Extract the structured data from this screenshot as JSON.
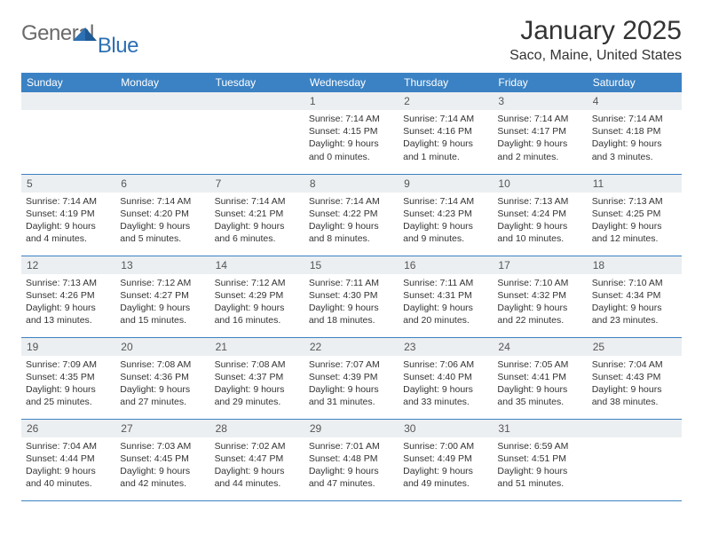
{
  "logo": {
    "general": "General",
    "blue": "Blue"
  },
  "title": "January 2025",
  "location": "Saco, Maine, United States",
  "colors": {
    "header_bg": "#3b82c4",
    "header_text": "#ffffff",
    "daynum_bg": "#eceff1",
    "border": "#3b82c4",
    "logo_gray": "#6a6a6a",
    "logo_blue": "#2d70b3"
  },
  "weekdays": [
    "Sunday",
    "Monday",
    "Tuesday",
    "Wednesday",
    "Thursday",
    "Friday",
    "Saturday"
  ],
  "weeks": [
    [
      null,
      null,
      null,
      {
        "n": "1",
        "sunrise": "7:14 AM",
        "sunset": "4:15 PM",
        "daylight": "9 hours and 0 minutes."
      },
      {
        "n": "2",
        "sunrise": "7:14 AM",
        "sunset": "4:16 PM",
        "daylight": "9 hours and 1 minute."
      },
      {
        "n": "3",
        "sunrise": "7:14 AM",
        "sunset": "4:17 PM",
        "daylight": "9 hours and 2 minutes."
      },
      {
        "n": "4",
        "sunrise": "7:14 AM",
        "sunset": "4:18 PM",
        "daylight": "9 hours and 3 minutes."
      }
    ],
    [
      {
        "n": "5",
        "sunrise": "7:14 AM",
        "sunset": "4:19 PM",
        "daylight": "9 hours and 4 minutes."
      },
      {
        "n": "6",
        "sunrise": "7:14 AM",
        "sunset": "4:20 PM",
        "daylight": "9 hours and 5 minutes."
      },
      {
        "n": "7",
        "sunrise": "7:14 AM",
        "sunset": "4:21 PM",
        "daylight": "9 hours and 6 minutes."
      },
      {
        "n": "8",
        "sunrise": "7:14 AM",
        "sunset": "4:22 PM",
        "daylight": "9 hours and 8 minutes."
      },
      {
        "n": "9",
        "sunrise": "7:14 AM",
        "sunset": "4:23 PM",
        "daylight": "9 hours and 9 minutes."
      },
      {
        "n": "10",
        "sunrise": "7:13 AM",
        "sunset": "4:24 PM",
        "daylight": "9 hours and 10 minutes."
      },
      {
        "n": "11",
        "sunrise": "7:13 AM",
        "sunset": "4:25 PM",
        "daylight": "9 hours and 12 minutes."
      }
    ],
    [
      {
        "n": "12",
        "sunrise": "7:13 AM",
        "sunset": "4:26 PM",
        "daylight": "9 hours and 13 minutes."
      },
      {
        "n": "13",
        "sunrise": "7:12 AM",
        "sunset": "4:27 PM",
        "daylight": "9 hours and 15 minutes."
      },
      {
        "n": "14",
        "sunrise": "7:12 AM",
        "sunset": "4:29 PM",
        "daylight": "9 hours and 16 minutes."
      },
      {
        "n": "15",
        "sunrise": "7:11 AM",
        "sunset": "4:30 PM",
        "daylight": "9 hours and 18 minutes."
      },
      {
        "n": "16",
        "sunrise": "7:11 AM",
        "sunset": "4:31 PM",
        "daylight": "9 hours and 20 minutes."
      },
      {
        "n": "17",
        "sunrise": "7:10 AM",
        "sunset": "4:32 PM",
        "daylight": "9 hours and 22 minutes."
      },
      {
        "n": "18",
        "sunrise": "7:10 AM",
        "sunset": "4:34 PM",
        "daylight": "9 hours and 23 minutes."
      }
    ],
    [
      {
        "n": "19",
        "sunrise": "7:09 AM",
        "sunset": "4:35 PM",
        "daylight": "9 hours and 25 minutes."
      },
      {
        "n": "20",
        "sunrise": "7:08 AM",
        "sunset": "4:36 PM",
        "daylight": "9 hours and 27 minutes."
      },
      {
        "n": "21",
        "sunrise": "7:08 AM",
        "sunset": "4:37 PM",
        "daylight": "9 hours and 29 minutes."
      },
      {
        "n": "22",
        "sunrise": "7:07 AM",
        "sunset": "4:39 PM",
        "daylight": "9 hours and 31 minutes."
      },
      {
        "n": "23",
        "sunrise": "7:06 AM",
        "sunset": "4:40 PM",
        "daylight": "9 hours and 33 minutes."
      },
      {
        "n": "24",
        "sunrise": "7:05 AM",
        "sunset": "4:41 PM",
        "daylight": "9 hours and 35 minutes."
      },
      {
        "n": "25",
        "sunrise": "7:04 AM",
        "sunset": "4:43 PM",
        "daylight": "9 hours and 38 minutes."
      }
    ],
    [
      {
        "n": "26",
        "sunrise": "7:04 AM",
        "sunset": "4:44 PM",
        "daylight": "9 hours and 40 minutes."
      },
      {
        "n": "27",
        "sunrise": "7:03 AM",
        "sunset": "4:45 PM",
        "daylight": "9 hours and 42 minutes."
      },
      {
        "n": "28",
        "sunrise": "7:02 AM",
        "sunset": "4:47 PM",
        "daylight": "9 hours and 44 minutes."
      },
      {
        "n": "29",
        "sunrise": "7:01 AM",
        "sunset": "4:48 PM",
        "daylight": "9 hours and 47 minutes."
      },
      {
        "n": "30",
        "sunrise": "7:00 AM",
        "sunset": "4:49 PM",
        "daylight": "9 hours and 49 minutes."
      },
      {
        "n": "31",
        "sunrise": "6:59 AM",
        "sunset": "4:51 PM",
        "daylight": "9 hours and 51 minutes."
      },
      null
    ]
  ],
  "labels": {
    "sunrise": "Sunrise: ",
    "sunset": "Sunset: ",
    "daylight": "Daylight: "
  }
}
